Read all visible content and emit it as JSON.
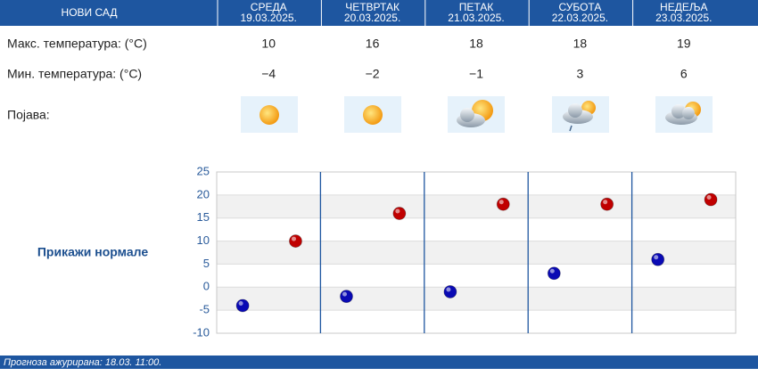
{
  "header": {
    "city": "НОВИ САД"
  },
  "days": [
    {
      "name": "СРЕДА",
      "date": "19.03.2025."
    },
    {
      "name": "ЧЕТВРТАК",
      "date": "20.03.2025."
    },
    {
      "name": "ПЕТАК",
      "date": "21.03.2025."
    },
    {
      "name": "СУБОТА",
      "date": "22.03.2025."
    },
    {
      "name": "НЕДЕЉА",
      "date": "23.03.2025."
    }
  ],
  "phenomenon_label": "Појава:",
  "normals_link": "Прикажи нормале",
  "footer": "Прогноза ажурирана:  18.03. 11:00.",
  "chart_data": {
    "type": "scatter",
    "series": [
      {
        "name": "Макс. температура: (°C)",
        "color": "#c00000",
        "values": [
          10,
          16,
          18,
          18,
          19
        ]
      },
      {
        "name": "Мин. температура: (°C)",
        "color": "#0a0ab4",
        "values": [
          -4,
          -2,
          -1,
          3,
          6
        ],
        "value_labels": [
          "−4",
          "−2",
          "−1",
          "3",
          "6"
        ]
      }
    ],
    "ylim": [
      -10,
      25
    ],
    "yticks": [
      -10,
      -5,
      0,
      5,
      10,
      15,
      20,
      25
    ],
    "grid": true
  }
}
